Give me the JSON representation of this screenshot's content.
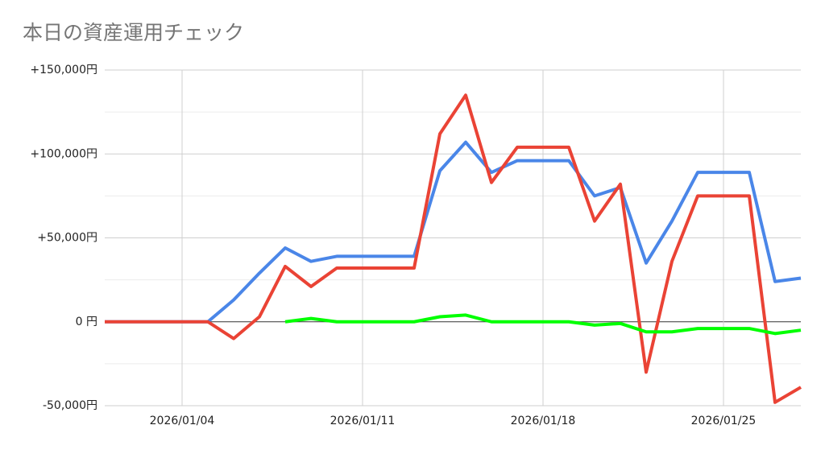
{
  "chart_data": {
    "type": "line",
    "title": "本日の資産運用チェック",
    "x": [
      "2026/01/01",
      "2026/01/02",
      "2026/01/03",
      "2026/01/04",
      "2026/01/05",
      "2026/01/06",
      "2026/01/07",
      "2026/01/08",
      "2026/01/09",
      "2026/01/10",
      "2026/01/11",
      "2026/01/12",
      "2026/01/13",
      "2026/01/14",
      "2026/01/15",
      "2026/01/16",
      "2026/01/17",
      "2026/01/18",
      "2026/01/19",
      "2026/01/20",
      "2026/01/21",
      "2026/01/22",
      "2026/01/23",
      "2026/01/24",
      "2026/01/25",
      "2026/01/26",
      "2026/01/27",
      "2026/01/28"
    ],
    "series": [
      {
        "color": "#4a86e8",
        "values": [
          0,
          0,
          0,
          0,
          0,
          13000,
          29000,
          44000,
          36000,
          39000,
          39000,
          39000,
          39000,
          90000,
          107000,
          89000,
          96000,
          96000,
          96000,
          75000,
          80000,
          35000,
          60000,
          89000,
          89000,
          89000,
          24000,
          26000
        ]
      },
      {
        "color": "#ea4335",
        "values": [
          0,
          0,
          0,
          0,
          0,
          -10000,
          3000,
          33000,
          21000,
          32000,
          32000,
          32000,
          32000,
          112000,
          135000,
          83000,
          104000,
          104000,
          104000,
          60000,
          82000,
          -30000,
          36000,
          75000,
          75000,
          75000,
          -48000,
          -39000
        ]
      },
      {
        "color": "#00ff00",
        "values": [
          null,
          null,
          null,
          null,
          null,
          null,
          null,
          0,
          2000,
          0,
          0,
          0,
          0,
          3000,
          4000,
          0,
          0,
          0,
          0,
          -2000,
          -1000,
          -6000,
          -6000,
          -4000,
          -4000,
          -4000,
          -7000,
          -5000
        ]
      }
    ],
    "xticks": [
      "2026/01/04",
      "2026/01/11",
      "2026/01/18",
      "2026/01/25"
    ],
    "ylim": [
      -50000,
      150000
    ],
    "yticks": [
      {
        "value": -50000,
        "label": "-50,000円"
      },
      {
        "value": 0,
        "label": "0 円"
      },
      {
        "value": 50000,
        "label": "+50,000円"
      },
      {
        "value": 100000,
        "label": "+100,000円"
      },
      {
        "value": 150000,
        "label": "+150,000円"
      }
    ],
    "yminorticks": [
      -25000,
      25000,
      75000,
      125000
    ],
    "grid": true
  }
}
